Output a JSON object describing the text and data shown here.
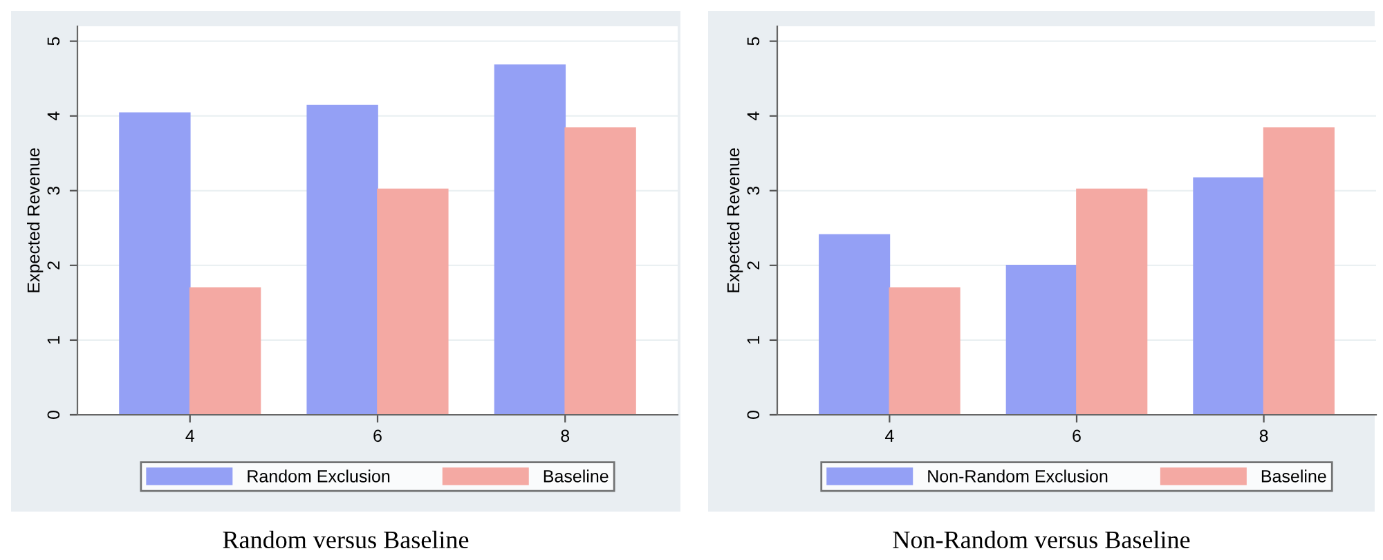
{
  "chart_data": [
    {
      "type": "bar",
      "title": "Random versus Baseline",
      "ylabel": "Expected Revenue",
      "categories": [
        "4",
        "6",
        "8"
      ],
      "series": [
        {
          "name": "Random Exclusion",
          "color": "#94a0f5",
          "values": [
            4.04,
            4.14,
            4.68
          ]
        },
        {
          "name": "Baseline",
          "color": "#f4a9a3",
          "values": [
            1.7,
            3.02,
            3.84
          ]
        }
      ],
      "ylim": [
        0,
        5.2
      ],
      "yticks": [
        0,
        1,
        2,
        3,
        4,
        5
      ],
      "grid": "y",
      "legend": "bottom"
    },
    {
      "type": "bar",
      "title": "Non-Random versus Baseline",
      "ylabel": "Expected Revenue",
      "categories": [
        "4",
        "6",
        "8"
      ],
      "series": [
        {
          "name": "Non-Random Exclusion",
          "color": "#94a0f5",
          "values": [
            2.41,
            2.0,
            3.17
          ]
        },
        {
          "name": "Baseline",
          "color": "#f4a9a3",
          "values": [
            1.7,
            3.02,
            3.84
          ]
        }
      ],
      "ylim": [
        0,
        5.2
      ],
      "yticks": [
        0,
        1,
        2,
        3,
        4,
        5
      ],
      "grid": "y",
      "legend": "bottom"
    }
  ]
}
